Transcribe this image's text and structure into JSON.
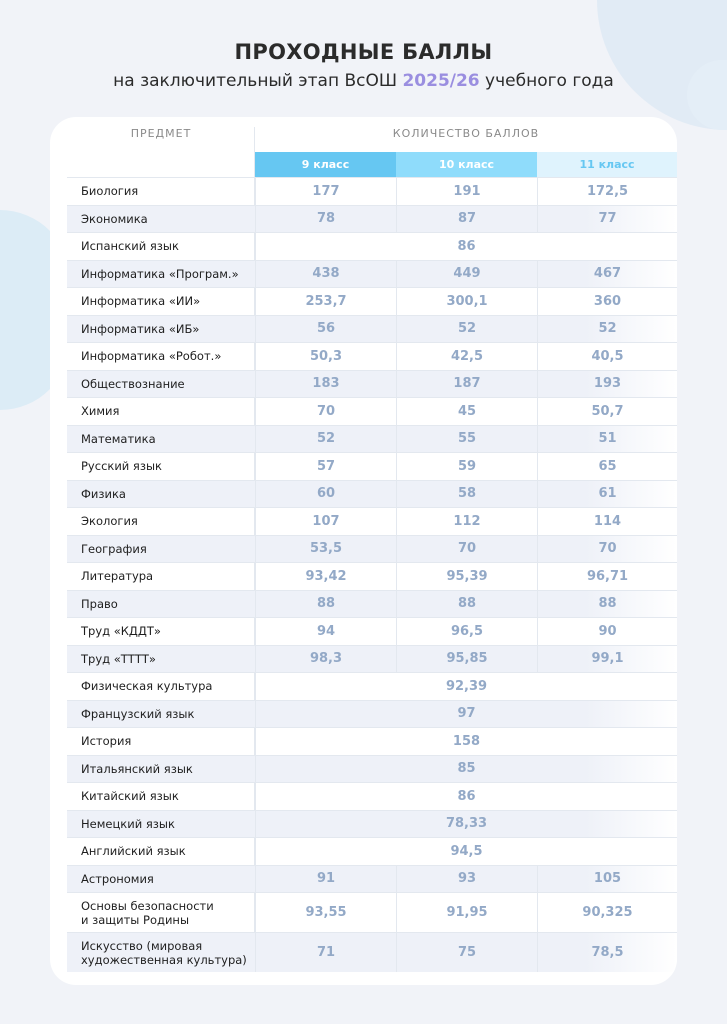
{
  "title": "ПРОХОДНЫЕ БАЛЛЫ",
  "subtitle": {
    "before": "на заключительный этап ВсОШ",
    "highlight": "2025/26",
    "after": "учебного года"
  },
  "colors": {
    "accent_purple": "#9a8ee0",
    "grade9": "#66c7f2",
    "grade10": "#8fdcfb",
    "grade11": "#dff3fd",
    "value_text": "#93a9c7"
  },
  "table": {
    "subject_header": "ПРЕДМЕТ",
    "score_header": "КОЛИЧЕСТВО БАЛЛОВ",
    "grades": [
      "9 класс",
      "10 класс",
      "11 класс"
    ],
    "rows": [
      {
        "subject": "Биология",
        "values": [
          "177",
          "191",
          "172,5"
        ]
      },
      {
        "subject": "Экономика",
        "values": [
          "78",
          "87",
          "77"
        ]
      },
      {
        "subject": "Испанский язык",
        "merged": "86"
      },
      {
        "subject": "Информатика  «Програм.»",
        "values": [
          "438",
          "449",
          "467"
        ]
      },
      {
        "subject": "Информатика  «ИИ»",
        "values": [
          "253,7",
          "300,1",
          "360"
        ]
      },
      {
        "subject": "Информатика  «ИБ»",
        "values": [
          "56",
          "52",
          "52"
        ]
      },
      {
        "subject": "Информатика  «Робот.»",
        "values": [
          "50,3",
          "42,5",
          "40,5"
        ]
      },
      {
        "subject": "Обществознание",
        "values": [
          "183",
          "187",
          "193"
        ]
      },
      {
        "subject": "Химия",
        "values": [
          "70",
          "45",
          "50,7"
        ]
      },
      {
        "subject": "Математика",
        "values": [
          "52",
          "55",
          "51"
        ]
      },
      {
        "subject": "Русский язык",
        "values": [
          "57",
          "59",
          "65"
        ]
      },
      {
        "subject": "Физика",
        "values": [
          "60",
          "58",
          "61"
        ]
      },
      {
        "subject": "Экология",
        "values": [
          "107",
          "112",
          "114"
        ]
      },
      {
        "subject": "География",
        "values": [
          "53,5",
          "70",
          "70"
        ]
      },
      {
        "subject": "Литература",
        "values": [
          "93,42",
          "95,39",
          "96,71"
        ]
      },
      {
        "subject": "Право",
        "values": [
          "88",
          "88",
          "88"
        ]
      },
      {
        "subject": "Труд «КДДТ»",
        "values": [
          "94",
          "96,5",
          "90"
        ]
      },
      {
        "subject": "Труд «ТТТТ»",
        "values": [
          "98,3",
          "95,85",
          "99,1"
        ]
      },
      {
        "subject": "Физическая культура",
        "merged": "92,39"
      },
      {
        "subject": "Французский язык",
        "merged": "97"
      },
      {
        "subject": "История",
        "merged": "158"
      },
      {
        "subject": "Итальянский язык",
        "merged": "85"
      },
      {
        "subject": "Китайский язык",
        "merged": "86"
      },
      {
        "subject": "Немецкий язык",
        "merged": "78,33"
      },
      {
        "subject": "Английский язык",
        "merged": "94,5"
      },
      {
        "subject": "Астрономия",
        "values": [
          "91",
          "93",
          "105"
        ]
      },
      {
        "subject": "Основы безопасности\nи защиты Родины",
        "values": [
          "93,55",
          "91,95",
          "90,325"
        ],
        "tall": true
      },
      {
        "subject": "Искусство (мировая\nхудожественная культура)",
        "values": [
          "71",
          "75",
          "78,5"
        ],
        "tall": true
      }
    ]
  }
}
